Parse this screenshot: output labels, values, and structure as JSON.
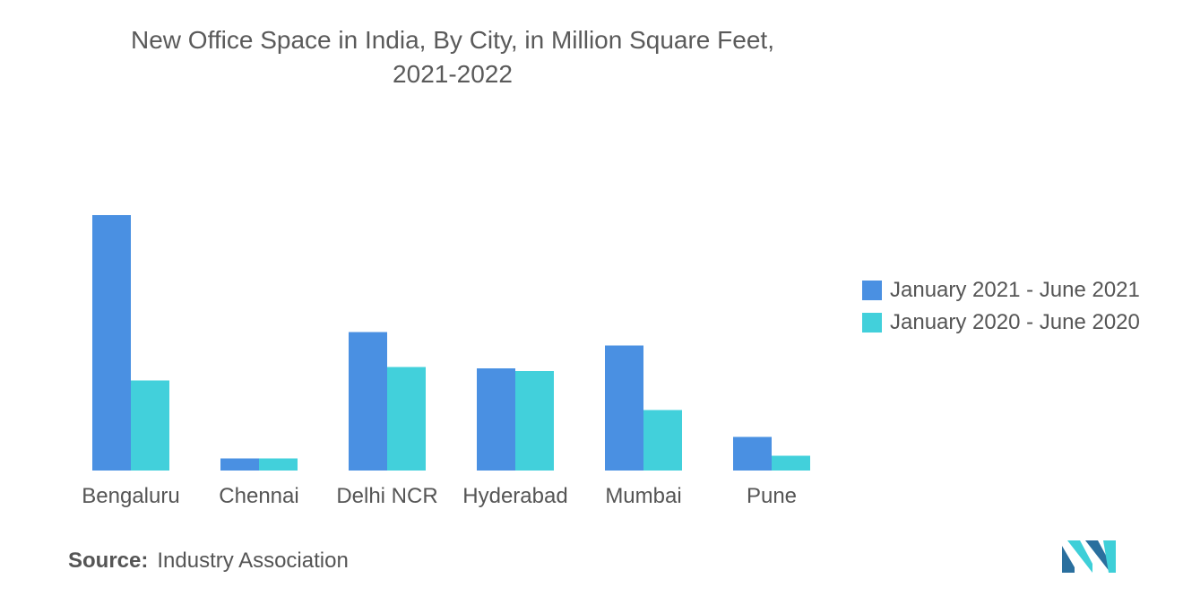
{
  "title": {
    "line1": "New Office Space in India, By City, in Million Square Feet,",
    "line2": "2021-2022"
  },
  "source": {
    "label": "Source:",
    "text": "Industry Association"
  },
  "logo": {
    "icon": "mordor-intelligence-logo-icon",
    "colors": [
      "#2a6f9e",
      "#3ecfd8"
    ]
  },
  "chart_data": {
    "type": "bar",
    "categories": [
      "Bengaluru",
      "Chennai",
      "Delhi NCR",
      "Hyderabad",
      "Mumbai",
      "Pune"
    ],
    "series": [
      {
        "name": "January 2021 - June 2021",
        "color": "#4a90e2",
        "values": [
          9.5,
          0.45,
          5.15,
          3.8,
          4.65,
          1.25
        ]
      },
      {
        "name": "January 2020 - June 2020",
        "color": "#42d0db",
        "values": [
          3.35,
          0.45,
          3.85,
          3.7,
          2.25,
          0.55
        ]
      }
    ],
    "ylim": [
      0,
      10
    ],
    "grid": false,
    "legend_position": "right",
    "xlabel": "",
    "ylabel": ""
  }
}
